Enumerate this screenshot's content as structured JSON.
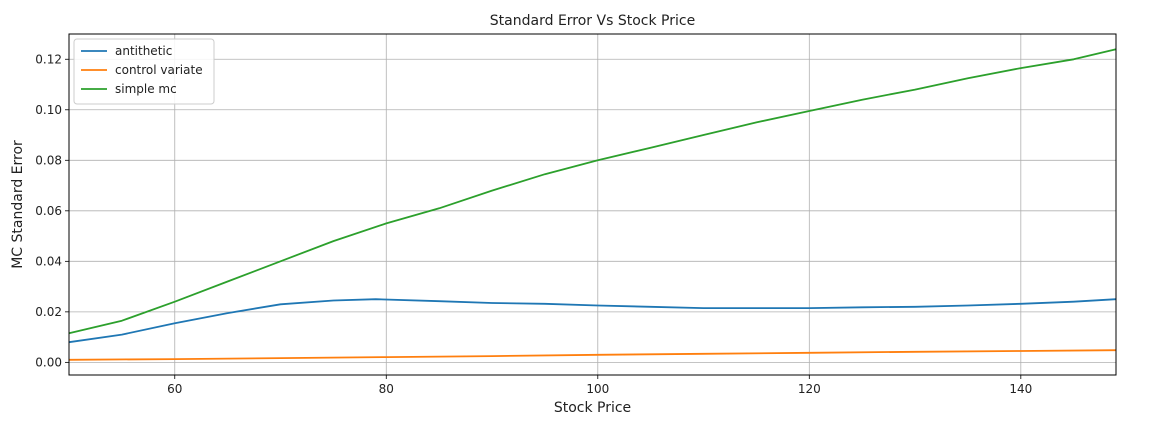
{
  "chart_data": {
    "type": "line",
    "title": "Standard Error Vs Stock Price",
    "xlabel": "Stock Price",
    "ylabel": "MC Standard Error",
    "xlim": [
      50,
      149
    ],
    "ylim": [
      -0.005,
      0.13
    ],
    "grid": true,
    "legend_position": "top-left",
    "x_ticks": [
      60,
      80,
      100,
      120,
      140
    ],
    "x_tick_labels": [
      "60",
      "80",
      "100",
      "120",
      "140"
    ],
    "y_ticks": [
      0.0,
      0.02,
      0.04,
      0.06,
      0.08,
      0.1,
      0.12
    ],
    "y_tick_labels": [
      "0.00",
      "0.02",
      "0.04",
      "0.06",
      "0.08",
      "0.10",
      "0.12"
    ],
    "series": [
      {
        "name": "antithetic",
        "color": "#1f77b4",
        "points": [
          [
            50,
            0.008
          ],
          [
            55,
            0.011
          ],
          [
            60,
            0.0155
          ],
          [
            65,
            0.0195
          ],
          [
            70,
            0.023
          ],
          [
            75,
            0.0245
          ],
          [
            79,
            0.025
          ],
          [
            85,
            0.0242
          ],
          [
            90,
            0.0235
          ],
          [
            95,
            0.0232
          ],
          [
            100,
            0.0225
          ],
          [
            105,
            0.022
          ],
          [
            110,
            0.0215
          ],
          [
            115,
            0.0215
          ],
          [
            120,
            0.0215
          ],
          [
            125,
            0.0218
          ],
          [
            130,
            0.022
          ],
          [
            135,
            0.0225
          ],
          [
            140,
            0.0232
          ],
          [
            145,
            0.024
          ],
          [
            149,
            0.025
          ]
        ]
      },
      {
        "name": "control variate",
        "color": "#ff7f0e",
        "points": [
          [
            50,
            0.001
          ],
          [
            60,
            0.0013
          ],
          [
            70,
            0.0017
          ],
          [
            80,
            0.0021
          ],
          [
            90,
            0.0025
          ],
          [
            100,
            0.003
          ],
          [
            110,
            0.0034
          ],
          [
            120,
            0.0038
          ],
          [
            130,
            0.0042
          ],
          [
            140,
            0.0045
          ],
          [
            149,
            0.0048
          ]
        ]
      },
      {
        "name": "simple mc",
        "color": "#2ca02c",
        "points": [
          [
            50,
            0.0115
          ],
          [
            55,
            0.0165
          ],
          [
            60,
            0.024
          ],
          [
            65,
            0.032
          ],
          [
            70,
            0.04
          ],
          [
            75,
            0.048
          ],
          [
            80,
            0.055
          ],
          [
            85,
            0.061
          ],
          [
            90,
            0.068
          ],
          [
            95,
            0.0745
          ],
          [
            100,
            0.08
          ],
          [
            105,
            0.085
          ],
          [
            110,
            0.09
          ],
          [
            115,
            0.095
          ],
          [
            120,
            0.0995
          ],
          [
            125,
            0.104
          ],
          [
            130,
            0.108
          ],
          [
            135,
            0.1125
          ],
          [
            140,
            0.1165
          ],
          [
            145,
            0.12
          ],
          [
            149,
            0.124
          ]
        ]
      }
    ]
  }
}
